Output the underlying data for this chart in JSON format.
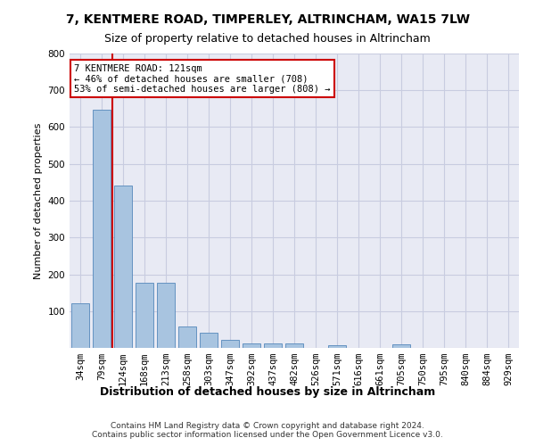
{
  "title": "7, KENTMERE ROAD, TIMPERLEY, ALTRINCHAM, WA15 7LW",
  "subtitle": "Size of property relative to detached houses in Altrincham",
  "xlabel": "Distribution of detached houses by size in Altrincham",
  "ylabel": "Number of detached properties",
  "categories": [
    "34sqm",
    "79sqm",
    "124sqm",
    "168sqm",
    "213sqm",
    "258sqm",
    "303sqm",
    "347sqm",
    "392sqm",
    "437sqm",
    "482sqm",
    "526sqm",
    "571sqm",
    "616sqm",
    "661sqm",
    "705sqm",
    "750sqm",
    "795sqm",
    "840sqm",
    "884sqm",
    "929sqm"
  ],
  "values": [
    122,
    648,
    442,
    178,
    178,
    57,
    41,
    22,
    12,
    13,
    11,
    0,
    8,
    0,
    0,
    9,
    0,
    0,
    0,
    0,
    0
  ],
  "bar_color": "#a8c4e0",
  "bar_edge_color": "#5588bb",
  "grid_color": "#c8cce0",
  "background_color": "#e8eaf4",
  "vline_x_index": 2,
  "vline_color": "#cc0000",
  "annotation_line1": "7 KENTMERE ROAD: 121sqm",
  "annotation_line2": "← 46% of detached houses are smaller (708)",
  "annotation_line3": "53% of semi-detached houses are larger (808) →",
  "annotation_box_color": "#ffffff",
  "annotation_box_edge": "#cc0000",
  "footer": "Contains HM Land Registry data © Crown copyright and database right 2024.\nContains public sector information licensed under the Open Government Licence v3.0.",
  "ylim": [
    0,
    800
  ],
  "yticks": [
    0,
    100,
    200,
    300,
    400,
    500,
    600,
    700,
    800
  ],
  "title_fontsize": 10,
  "subtitle_fontsize": 9,
  "xlabel_fontsize": 9,
  "ylabel_fontsize": 8,
  "tick_fontsize": 7.5,
  "annot_fontsize": 7.5
}
